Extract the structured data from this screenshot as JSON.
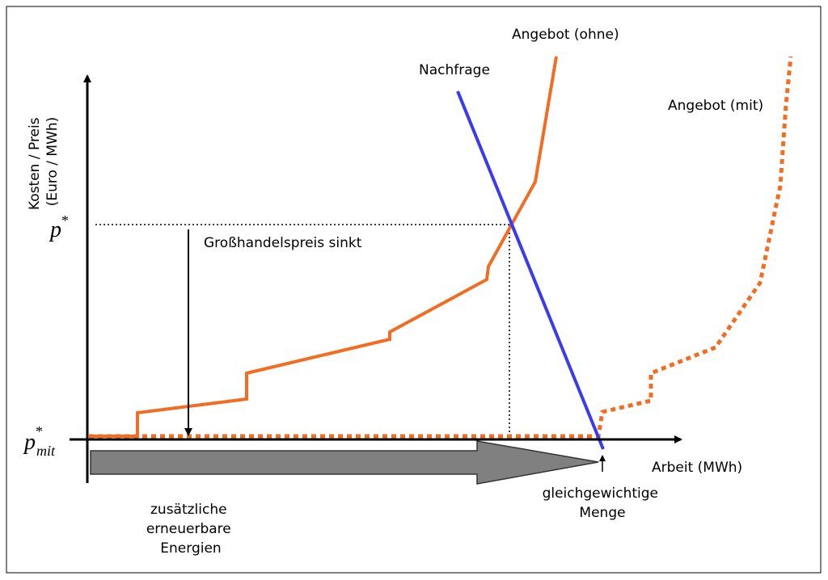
{
  "labels": {
    "supply_without": "Angebot (ohne)",
    "demand": "Nachfrage",
    "supply_with": "Angebot (mit)",
    "y_axis": [
      "Kosten / Preis",
      "(Euro / MWh)"
    ],
    "p_star": {
      "base": "p",
      "sup": "*"
    },
    "p_star_mit": {
      "base": "p",
      "sup": "*",
      "sub": "mit"
    },
    "price_drop": "Großhandelspreis sinkt",
    "x_axis": "Arbeit (MWh)",
    "equilibrium": [
      "gleichgewichtige",
      "Menge"
    ],
    "renewables": [
      "zusätzliche",
      "erneuerbare",
      "Energien"
    ]
  }
}
